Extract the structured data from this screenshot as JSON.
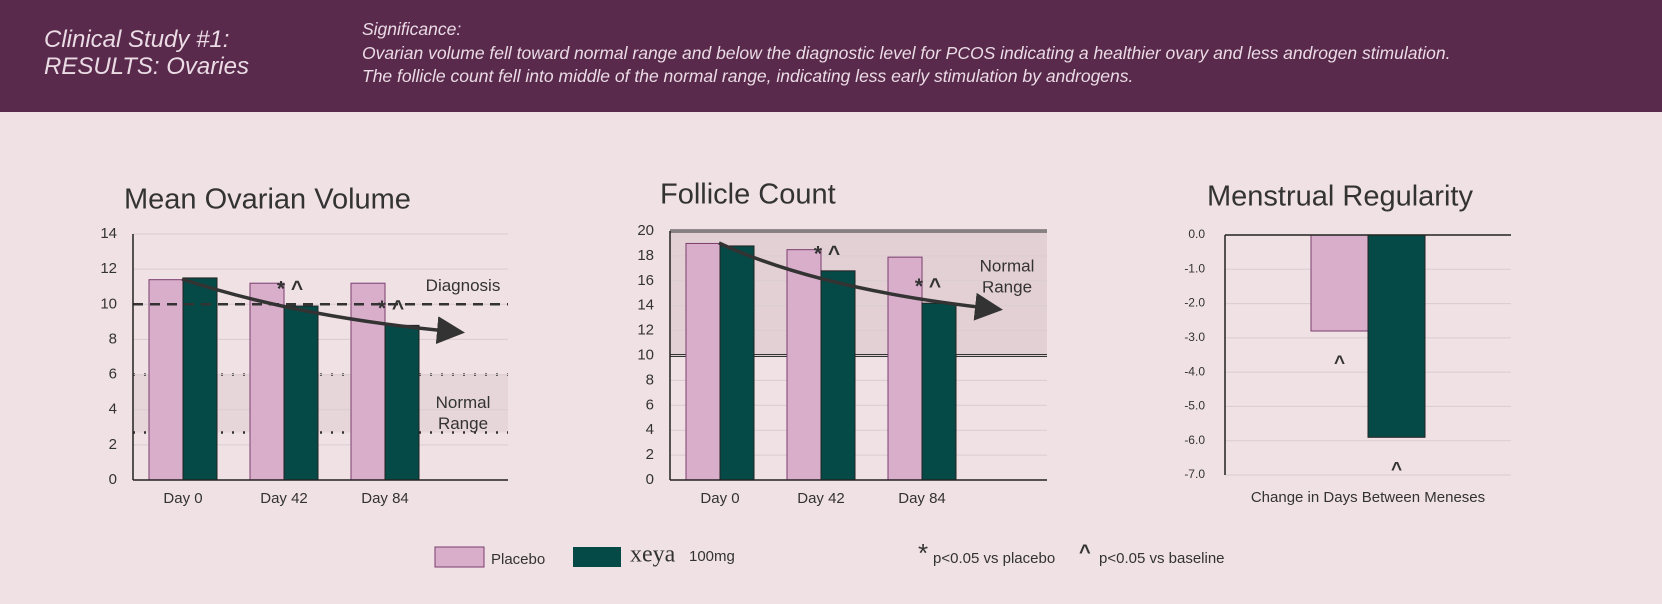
{
  "header": {
    "title": [
      "Clinical Study #1:",
      "RESULTS: Ovaries"
    ],
    "significance_label": "Significance:",
    "significance": [
      "Ovarian volume fell toward normal range and below the diagnostic level for PCOS indicating a healthier ovary and less androgen stimulation.",
      "The follicle count fell into middle of the normal range, indicating less early stimulation by androgens."
    ]
  },
  "legend": {
    "items": [
      {
        "name": "Placebo",
        "color": "#d9aecb"
      },
      {
        "brand": "xeya",
        "name": "100mg",
        "color": "#064a47"
      }
    ],
    "notes": [
      {
        "symbol": "*",
        "text": "p<0.05 vs placebo"
      },
      {
        "symbol": "^",
        "text": "p<0.05 vs baseline"
      }
    ]
  },
  "chart_data": [
    {
      "type": "bar",
      "title": "Mean Ovarian Volume",
      "categories": [
        "Day 0",
        "Day 42",
        "Day 84"
      ],
      "series": [
        {
          "values": [
            11.4,
            11.2,
            11.2
          ]
        },
        {
          "values": [
            11.5,
            9.9,
            8.8
          ]
        }
      ],
      "ylim": [
        0,
        14
      ],
      "yticks": [
        0,
        2,
        4,
        6,
        8,
        10,
        12,
        14
      ],
      "grid": true,
      "annotations": [
        {
          "category": 1,
          "text": "* ^"
        },
        {
          "category": 2,
          "text": "* ^"
        }
      ],
      "reference_lines": [
        {
          "label": "Diagnosis",
          "value": 10,
          "style": "dashed"
        }
      ],
      "bands": [
        {
          "label": [
            "Normal",
            "Range"
          ],
          "range": [
            2.7,
            6
          ],
          "style": "dotted"
        }
      ]
    },
    {
      "type": "bar",
      "title": "Follicle Count",
      "categories": [
        "Day 0",
        "Day 42",
        "Day 84"
      ],
      "series": [
        {
          "values": [
            19.0,
            18.5,
            17.9
          ]
        },
        {
          "values": [
            18.8,
            16.8,
            14.2
          ]
        }
      ],
      "ylim": [
        0,
        20
      ],
      "yticks": [
        0,
        2,
        4,
        6,
        8,
        10,
        12,
        14,
        16,
        18,
        20
      ],
      "grid": true,
      "annotations": [
        {
          "category": 1,
          "text": "* ^"
        },
        {
          "category": 2,
          "text": "* ^"
        }
      ],
      "bands": [
        {
          "label": [
            "Normal",
            "Range"
          ],
          "range": [
            10,
            20
          ],
          "style": "solid"
        }
      ]
    },
    {
      "type": "bar",
      "title": "Menstrual Regularity",
      "categories": [
        "Change in Days Between Meneses"
      ],
      "series": [
        {
          "values": [
            -2.8
          ]
        },
        {
          "values": [
            -5.9
          ]
        }
      ],
      "ylim": [
        -7,
        0
      ],
      "yticks": [
        {
          "value": 0,
          "label": "0.0"
        },
        {
          "value": -1,
          "label": "-1.0"
        },
        {
          "value": -2,
          "label": "-2.0"
        },
        {
          "value": -3,
          "label": "-3.0"
        },
        {
          "value": -4,
          "label": "-4.0"
        },
        {
          "value": -5,
          "label": "-5.0"
        },
        {
          "value": -6,
          "label": "-6.0"
        },
        {
          "value": -7,
          "label": "-7.0"
        }
      ],
      "grid": true,
      "series_annotations": [
        {
          "series": 0,
          "text": "^"
        },
        {
          "series": 1,
          "text": "^"
        }
      ]
    }
  ]
}
